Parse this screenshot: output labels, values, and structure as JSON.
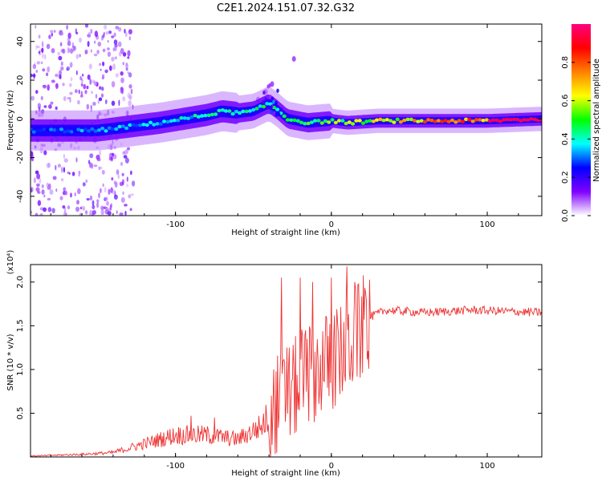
{
  "figure": {
    "title": "C2E1.2024.151.07.32.G32"
  },
  "chart_data": [
    {
      "type": "heatmap",
      "panel": "top",
      "xlabel": "Height of straight line (km)",
      "ylabel": "Frequency (Hz)",
      "xlim": [
        -193,
        135
      ],
      "ylim": [
        -50,
        49
      ],
      "xticks": [
        -100,
        0,
        100
      ],
      "yticks": [
        -40,
        -20,
        0,
        20,
        40
      ],
      "colorbar": {
        "label": "Normalized spectral amplitude",
        "range": [
          0,
          1
        ],
        "ticks": [
          "0.0",
          "0.2",
          "0.4",
          "0.6",
          "0.8"
        ],
        "colors": [
          "#ffffff",
          "#8000ff",
          "#0000ff",
          "#00ffff",
          "#00ff00",
          "#ffff00",
          "#ff8000",
          "#ff0000",
          "#ff0080"
        ]
      },
      "ridge": [
        {
          "x": -190,
          "y": -6
        },
        {
          "x": -170,
          "y": -6
        },
        {
          "x": -150,
          "y": -6
        },
        {
          "x": -130,
          "y": -4
        },
        {
          "x": -110,
          "y": -2
        },
        {
          "x": -95,
          "y": 0
        },
        {
          "x": -80,
          "y": 2
        },
        {
          "x": -70,
          "y": 4
        },
        {
          "x": -60,
          "y": 3
        },
        {
          "x": -50,
          "y": 4
        },
        {
          "x": -40,
          "y": 8
        },
        {
          "x": -35,
          "y": 5
        },
        {
          "x": -28,
          "y": 0
        },
        {
          "x": -15,
          "y": -2
        },
        {
          "x": 0,
          "y": -1
        },
        {
          "x": 10,
          "y": -2
        },
        {
          "x": 30,
          "y": -1
        },
        {
          "x": 60,
          "y": -1
        },
        {
          "x": 100,
          "y": -1
        },
        {
          "x": 135,
          "y": 0
        }
      ],
      "ridge_amplitude": [
        {
          "x": -190,
          "a": 0.3
        },
        {
          "x": -130,
          "a": 0.35
        },
        {
          "x": -60,
          "a": 0.45
        },
        {
          "x": -20,
          "a": 0.5
        },
        {
          "x": 20,
          "a": 0.6
        },
        {
          "x": 60,
          "a": 0.75
        },
        {
          "x": 100,
          "a": 0.85
        },
        {
          "x": 135,
          "a": 1.0
        }
      ],
      "noise_region": {
        "x_start": -193,
        "x_end": -135
      }
    },
    {
      "type": "line",
      "panel": "bottom",
      "xlabel": "Height of straight line (km)",
      "ylabel": "SNR (10 * v/v)",
      "yscale_label": "(x10⁴)",
      "xlim": [
        -193,
        135
      ],
      "ylim": [
        0,
        2.2
      ],
      "xticks": [
        -100,
        0,
        100
      ],
      "yticks": [
        0.5,
        1.0,
        1.5,
        2.0
      ],
      "color": "#ee3333",
      "series": [
        {
          "envelope": [
            {
              "x": -193,
              "y": 0.01
            },
            {
              "x": -160,
              "y": 0.03
            },
            {
              "x": -140,
              "y": 0.05
            },
            {
              "x": -120,
              "y": 0.15
            },
            {
              "x": -100,
              "y": 0.25
            },
            {
              "x": -80,
              "y": 0.25
            },
            {
              "x": -60,
              "y": 0.2
            },
            {
              "x": -45,
              "y": 0.35
            },
            {
              "x": -35,
              "y": 0.6
            },
            {
              "x": -25,
              "y": 0.75
            },
            {
              "x": -15,
              "y": 0.95
            },
            {
              "x": -5,
              "y": 1.05
            },
            {
              "x": 5,
              "y": 1.15
            },
            {
              "x": 15,
              "y": 1.35
            },
            {
              "x": 25,
              "y": 1.6
            },
            {
              "x": 35,
              "y": 1.68
            },
            {
              "x": 60,
              "y": 1.65
            },
            {
              "x": 90,
              "y": 1.68
            },
            {
              "x": 135,
              "y": 1.65
            }
          ],
          "peaks": [
            {
              "x": -32,
              "y": 2.05
            },
            {
              "x": -20,
              "y": 2.05
            },
            {
              "x": -12,
              "y": 2.0
            },
            {
              "x": 0,
              "y": 2.05
            },
            {
              "x": 10,
              "y": 2.18
            },
            {
              "x": 15,
              "y": 2.0
            },
            {
              "x": 22,
              "y": 1.88
            },
            {
              "x": -75,
              "y": 0.45
            },
            {
              "x": -90,
              "y": 0.47
            }
          ]
        }
      ]
    }
  ]
}
